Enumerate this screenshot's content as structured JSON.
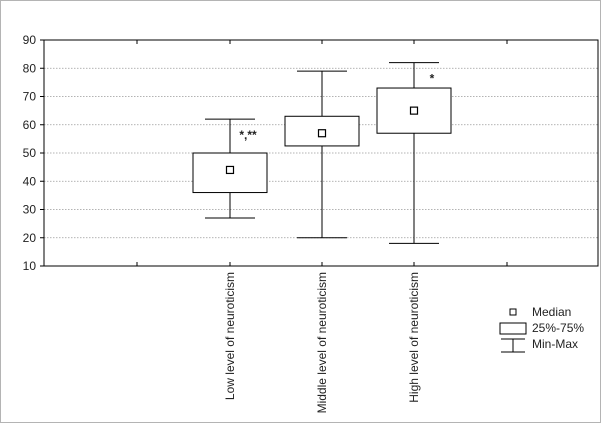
{
  "chart_data": {
    "type": "box",
    "title": "",
    "xlabel": "",
    "ylabel": "",
    "ylim": [
      10,
      90
    ],
    "yticks": [
      10,
      20,
      30,
      40,
      50,
      60,
      70,
      80,
      90
    ],
    "grid": true,
    "legend_position": "bottom-right",
    "categories": [
      "Low level of neuroticism",
      "Middle level of neuroticism",
      "High level of neuroticism"
    ],
    "boxes": [
      {
        "category": "Low level of neuroticism",
        "min": 27,
        "q1": 36,
        "median": 44,
        "q3": 50,
        "max": 62,
        "annotation": "*,**"
      },
      {
        "category": "Middle level of neuroticism",
        "min": 20,
        "q1": 52.5,
        "median": 57,
        "q3": 63,
        "max": 79,
        "annotation": ""
      },
      {
        "category": "High level of neuroticism",
        "min": 18,
        "q1": 57,
        "median": 65,
        "q3": 73,
        "max": 82,
        "annotation": "*"
      }
    ],
    "legend": [
      {
        "symbol": "median",
        "label": "Median"
      },
      {
        "symbol": "box",
        "label": "25%-75%"
      },
      {
        "symbol": "whisker",
        "label": "Min-Max"
      }
    ]
  }
}
